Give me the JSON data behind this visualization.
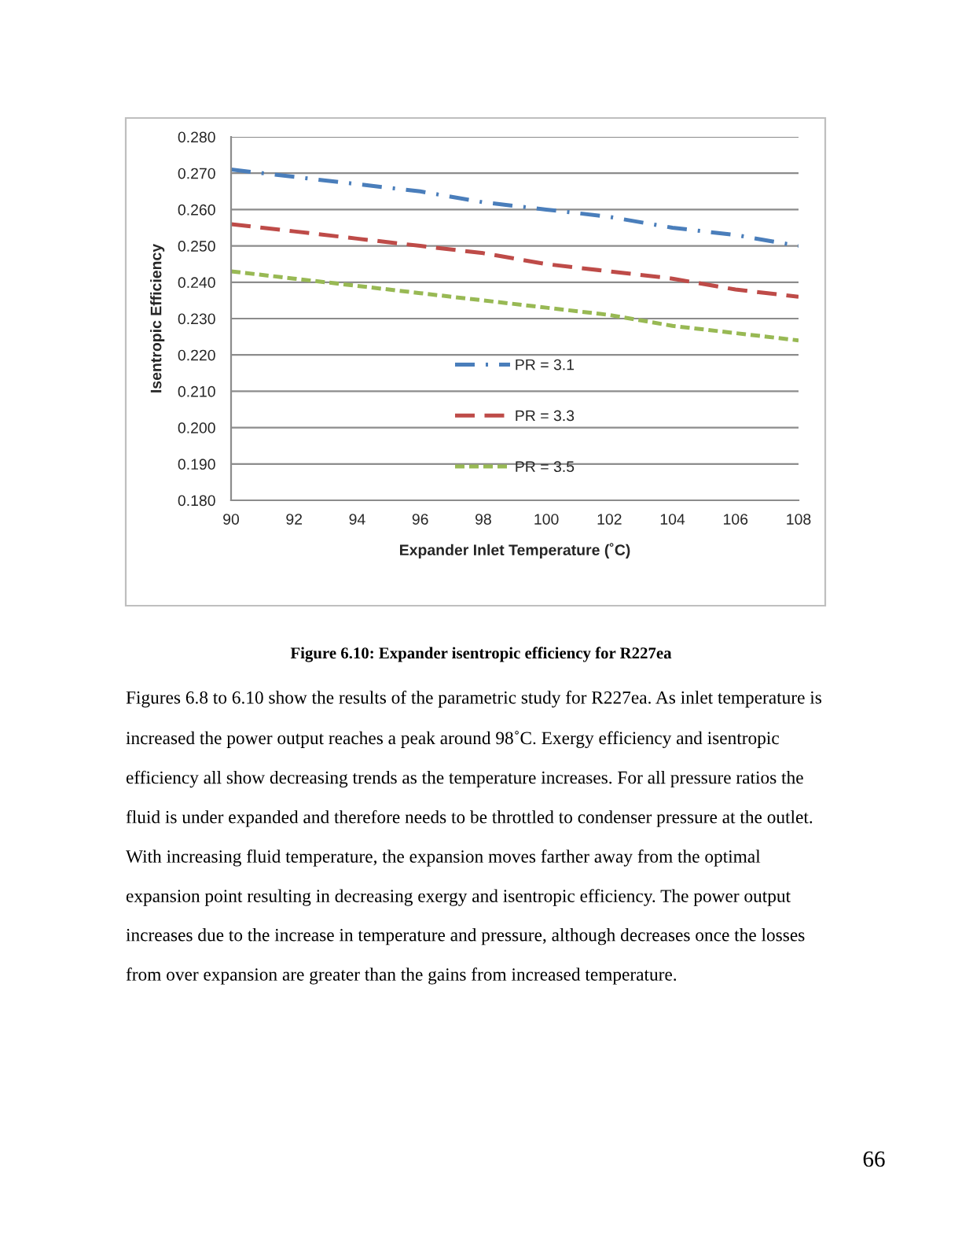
{
  "chart_data": {
    "type": "line",
    "title": "Figure 6.10: Expander isentropic efficiency for R227ea",
    "xlabel": "Expander Inlet Temperature (˚C)",
    "ylabel": "Isentropic Efficiency",
    "annotations": [
      "Figures 6.8 to 6.10 show the results of the parametric study for R227ea. As inlet temperature is increased the power output reaches a peak around 98˚C. Exergy efficiency and isentropic efficiency all show decreasing trends as the temperature increases. For all pressure ratios the fluid is under expanded and therefore needs to be throttled to condenser pressure at the outlet. With increasing fluid temperature, the expansion moves farther away from the optimal expansion point resulting in decreasing exergy and isentropic efficiency. The power output increases due to the increase in temperature and pressure, although decreases once the losses from over expansion are greater than the gains from increased temperature.",
      "66"
    ],
    "x": [
      90,
      92,
      94,
      96,
      98,
      100,
      102,
      104,
      106,
      108
    ],
    "series": [
      {
        "name": "PR = 3.1",
        "color": "#4a7ebb",
        "line_style": "dashdot",
        "values": [
          0.271,
          0.269,
          0.267,
          0.265,
          0.262,
          0.26,
          0.258,
          0.255,
          0.253,
          0.25
        ]
      },
      {
        "name": "PR = 3.3",
        "color": "#be4b48",
        "line_style": "dashed",
        "values": [
          0.256,
          0.254,
          0.252,
          0.25,
          0.248,
          0.245,
          0.243,
          0.241,
          0.238,
          0.236
        ]
      },
      {
        "name": "PR = 3.5",
        "color": "#98b954",
        "line_style": "dotted",
        "values": [
          0.243,
          0.241,
          0.239,
          0.237,
          0.235,
          0.233,
          0.231,
          0.228,
          0.226,
          0.224
        ]
      }
    ],
    "xlim": [
      90,
      108
    ],
    "xticks": [
      90,
      92,
      94,
      96,
      98,
      100,
      102,
      104,
      106,
      108
    ],
    "ylim": [
      0.18,
      0.28
    ],
    "yticks": [
      {
        "value": 0.18,
        "label": "0.180"
      },
      {
        "value": 0.19,
        "label": "0.190"
      },
      {
        "value": 0.2,
        "label": "0.200"
      },
      {
        "value": 0.21,
        "label": "0.210"
      },
      {
        "value": 0.22,
        "label": "0.220"
      },
      {
        "value": 0.23,
        "label": "0.230"
      },
      {
        "value": 0.24,
        "label": "0.240"
      },
      {
        "value": 0.25,
        "label": "0.250"
      },
      {
        "value": 0.26,
        "label": "0.260"
      },
      {
        "value": 0.27,
        "label": "0.270"
      },
      {
        "value": 0.28,
        "label": "0.280"
      }
    ],
    "grid": "y",
    "legend": "bottom"
  }
}
